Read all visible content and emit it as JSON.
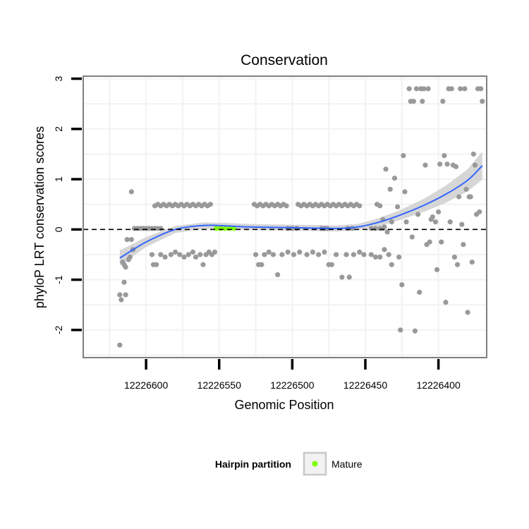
{
  "chart_data": {
    "type": "scatter",
    "title": "Conservation",
    "xlabel": "Genomic Position",
    "ylabel": "phyloP LRT conservation scores",
    "x_reversed": true,
    "xlim": [
      12226643,
      12226367
    ],
    "ylim": [
      -2.55,
      3.05
    ],
    "x_ticks": [
      12226600,
      12226550,
      12226500,
      12226450,
      12226400
    ],
    "y_ticks": [
      -2,
      -1,
      0,
      1,
      2,
      3
    ],
    "reference_line_y": 0,
    "grid": true,
    "legend": {
      "title": "Hairpin partition",
      "placement": "bottom",
      "entries": [
        {
          "name": "Mature",
          "color": "#7fff00"
        }
      ]
    },
    "colors": {
      "points": "#999999",
      "mature": "#7fff00",
      "smooth": "#3366ff",
      "band": "#d2d2d2"
    },
    "series": [
      {
        "name": "Mature",
        "points": [
          [
            12226552,
            0.02
          ],
          [
            12226549,
            0.02
          ],
          [
            12226546,
            0.02
          ],
          [
            12226543,
            0.02
          ],
          [
            12226540,
            0.02
          ]
        ]
      },
      {
        "name": "",
        "points": [
          [
            12226618,
            -2.3
          ],
          [
            12226618,
            -1.3
          ],
          [
            12226617,
            -1.4
          ],
          [
            12226616,
            -0.65
          ],
          [
            12226615,
            -0.7
          ],
          [
            12226615,
            -1.05
          ],
          [
            12226614,
            -0.75
          ],
          [
            12226614,
            -1.3
          ],
          [
            12226613,
            -0.2
          ],
          [
            12226612,
            -0.6
          ],
          [
            12226611,
            -0.55
          ],
          [
            12226610,
            0.75
          ],
          [
            12226610,
            -0.2
          ],
          [
            12226609,
            -0.4
          ],
          [
            12226608,
            0.02
          ],
          [
            12226606,
            0.02
          ],
          [
            12226604,
            0.02
          ],
          [
            12226602,
            0.02
          ],
          [
            12226600,
            0.02
          ],
          [
            12226598,
            0.02
          ],
          [
            12226596,
            0.02
          ],
          [
            12226594,
            0.02
          ],
          [
            12226592,
            0.02
          ],
          [
            12226590,
            0.02
          ],
          [
            12226596,
            -0.5
          ],
          [
            12226595,
            -0.7
          ],
          [
            12226593,
            -0.7
          ],
          [
            12226594,
            0.47
          ],
          [
            12226592,
            0.5
          ],
          [
            12226590,
            0.47
          ],
          [
            12226588,
            0.5
          ],
          [
            12226586,
            0.47
          ],
          [
            12226584,
            0.5
          ],
          [
            12226582,
            0.47
          ],
          [
            12226580,
            0.5
          ],
          [
            12226578,
            0.47
          ],
          [
            12226576,
            0.5
          ],
          [
            12226574,
            0.47
          ],
          [
            12226572,
            0.5
          ],
          [
            12226570,
            0.47
          ],
          [
            12226568,
            0.5
          ],
          [
            12226566,
            0.47
          ],
          [
            12226564,
            0.5
          ],
          [
            12226562,
            0.47
          ],
          [
            12226560,
            0.5
          ],
          [
            12226558,
            0.47
          ],
          [
            12226556,
            0.5
          ],
          [
            12226590,
            -0.5
          ],
          [
            12226587,
            -0.55
          ],
          [
            12226583,
            -0.5
          ],
          [
            12226580,
            -0.45
          ],
          [
            12226577,
            -0.5
          ],
          [
            12226574,
            -0.55
          ],
          [
            12226571,
            -0.5
          ],
          [
            12226568,
            -0.45
          ],
          [
            12226566,
            -0.55
          ],
          [
            12226563,
            -0.5
          ],
          [
            12226561,
            -0.7
          ],
          [
            12226559,
            -0.5
          ],
          [
            12226557,
            -0.45
          ],
          [
            12226555,
            -0.5
          ],
          [
            12226553,
            -0.45
          ],
          [
            12226526,
            0.5
          ],
          [
            12226524,
            0.47
          ],
          [
            12226522,
            0.5
          ],
          [
            12226520,
            0.47
          ],
          [
            12226518,
            0.5
          ],
          [
            12226516,
            0.47
          ],
          [
            12226514,
            0.5
          ],
          [
            12226512,
            0.47
          ],
          [
            12226510,
            0.5
          ],
          [
            12226508,
            0.47
          ],
          [
            12226506,
            0.5
          ],
          [
            12226504,
            0.47
          ],
          [
            12226496,
            0.5
          ],
          [
            12226494,
            0.47
          ],
          [
            12226492,
            0.5
          ],
          [
            12226490,
            0.47
          ],
          [
            12226488,
            0.5
          ],
          [
            12226486,
            0.47
          ],
          [
            12226484,
            0.5
          ],
          [
            12226482,
            0.47
          ],
          [
            12226480,
            0.5
          ],
          [
            12226478,
            0.47
          ],
          [
            12226476,
            0.5
          ],
          [
            12226474,
            0.47
          ],
          [
            12226472,
            0.5
          ],
          [
            12226470,
            0.47
          ],
          [
            12226468,
            0.5
          ],
          [
            12226466,
            0.47
          ],
          [
            12226464,
            0.5
          ],
          [
            12226462,
            0.47
          ],
          [
            12226460,
            0.5
          ],
          [
            12226458,
            0.47
          ],
          [
            12226456,
            0.5
          ],
          [
            12226454,
            0.47
          ],
          [
            12226525,
            -0.5
          ],
          [
            12226523,
            -0.7
          ],
          [
            12226521,
            -0.7
          ],
          [
            12226519,
            -0.5
          ],
          [
            12226516,
            -0.45
          ],
          [
            12226513,
            -0.5
          ],
          [
            12226510,
            -0.9
          ],
          [
            12226507,
            -0.5
          ],
          [
            12226503,
            -0.45
          ],
          [
            12226499,
            -0.5
          ],
          [
            12226495,
            -0.45
          ],
          [
            12226490,
            -0.5
          ],
          [
            12226486,
            -0.45
          ],
          [
            12226482,
            -0.5
          ],
          [
            12226478,
            -0.45
          ],
          [
            12226475,
            -0.7
          ],
          [
            12226473,
            -0.7
          ],
          [
            12226470,
            -0.5
          ],
          [
            12226466,
            -0.95
          ],
          [
            12226463,
            -0.5
          ],
          [
            12226461,
            -0.95
          ],
          [
            12226458,
            -0.5
          ],
          [
            12226454,
            -0.45
          ],
          [
            12226451,
            -0.5
          ],
          [
            12226503,
            0.02
          ],
          [
            12226500,
            0.02
          ],
          [
            12226497,
            0.02
          ],
          [
            12226480,
            0.02
          ],
          [
            12226478,
            0.02
          ],
          [
            12226476,
            0.02
          ],
          [
            12226462,
            0.02
          ],
          [
            12226459,
            0.02
          ],
          [
            12226446,
            0.02
          ],
          [
            12226443,
            0.02
          ],
          [
            12226440,
            0.02
          ],
          [
            12226438,
            0.02
          ],
          [
            12226446,
            -0.5
          ],
          [
            12226443,
            -0.55
          ],
          [
            12226440,
            -0.55
          ],
          [
            12226437,
            -0.4
          ],
          [
            12226434,
            -0.5
          ],
          [
            12226432,
            -0.7
          ],
          [
            12226442,
            0.5
          ],
          [
            12226440,
            0.47
          ],
          [
            12226438,
            0.2
          ],
          [
            12226437,
            0.05
          ],
          [
            12226436,
            1.2
          ],
          [
            12226435,
            -0.05
          ],
          [
            12226433,
            0.8
          ],
          [
            12226432,
            0.15
          ],
          [
            12226430,
            1.02
          ],
          [
            12226428,
            0.45
          ],
          [
            12226427,
            -0.55
          ],
          [
            12226426,
            -2.0
          ],
          [
            12226425,
            -1.1
          ],
          [
            12226424,
            1.47
          ],
          [
            12226423,
            0.75
          ],
          [
            12226422,
            0.15
          ],
          [
            12226420,
            2.8
          ],
          [
            12226419,
            2.55
          ],
          [
            12226418,
            -0.15
          ],
          [
            12226417,
            2.55
          ],
          [
            12226416,
            -2.02
          ],
          [
            12226415,
            2.8
          ],
          [
            12226414,
            0.3
          ],
          [
            12226413,
            -1.25
          ],
          [
            12226412,
            2.8
          ],
          [
            12226411,
            2.55
          ],
          [
            12226410,
            2.8
          ],
          [
            12226409,
            1.28
          ],
          [
            12226408,
            -0.3
          ],
          [
            12226407,
            2.8
          ],
          [
            12226406,
            -0.25
          ],
          [
            12226405,
            0.2
          ],
          [
            12226404,
            0.25
          ],
          [
            12226402,
            0.15
          ],
          [
            12226401,
            -0.8
          ],
          [
            12226400,
            0.35
          ],
          [
            12226399,
            1.3
          ],
          [
            12226398,
            -0.25
          ],
          [
            12226397,
            2.55
          ],
          [
            12226396,
            1.47
          ],
          [
            12226395,
            -1.45
          ],
          [
            12226394,
            1.3
          ],
          [
            12226393,
            2.8
          ],
          [
            12226392,
            0.15
          ],
          [
            12226391,
            2.8
          ],
          [
            12226390,
            1.28
          ],
          [
            12226389,
            -0.55
          ],
          [
            12226388,
            1.25
          ],
          [
            12226387,
            -0.7
          ],
          [
            12226386,
            0.65
          ],
          [
            12226385,
            2.8
          ],
          [
            12226384,
            0.1
          ],
          [
            12226383,
            -0.3
          ],
          [
            12226382,
            2.8
          ],
          [
            12226381,
            0.8
          ],
          [
            12226380,
            -1.65
          ],
          [
            12226379,
            0.65
          ],
          [
            12226378,
            0.65
          ],
          [
            12226377,
            -0.65
          ],
          [
            12226376,
            1.5
          ],
          [
            12226375,
            1.28
          ],
          [
            12226374,
            0.3
          ],
          [
            12226373,
            2.8
          ],
          [
            12226372,
            0.35
          ],
          [
            12226371,
            2.8
          ],
          [
            12226370,
            2.55
          ]
        ]
      }
    ],
    "smooth": {
      "name": "",
      "x": [
        12226618,
        12226600,
        12226580,
        12226560,
        12226545,
        12226530,
        12226510,
        12226490,
        12226470,
        12226455,
        12226440,
        12226425,
        12226410,
        12226395,
        12226380,
        12226370
      ],
      "y": [
        -0.57,
        -0.25,
        0.0,
        0.08,
        0.07,
        0.05,
        0.04,
        0.03,
        0.02,
        0.05,
        0.15,
        0.3,
        0.48,
        0.7,
        0.98,
        1.27
      ],
      "band_half_width": [
        0.15,
        0.1,
        0.07,
        0.06,
        0.06,
        0.06,
        0.06,
        0.06,
        0.06,
        0.06,
        0.08,
        0.1,
        0.13,
        0.17,
        0.22,
        0.28
      ]
    }
  }
}
